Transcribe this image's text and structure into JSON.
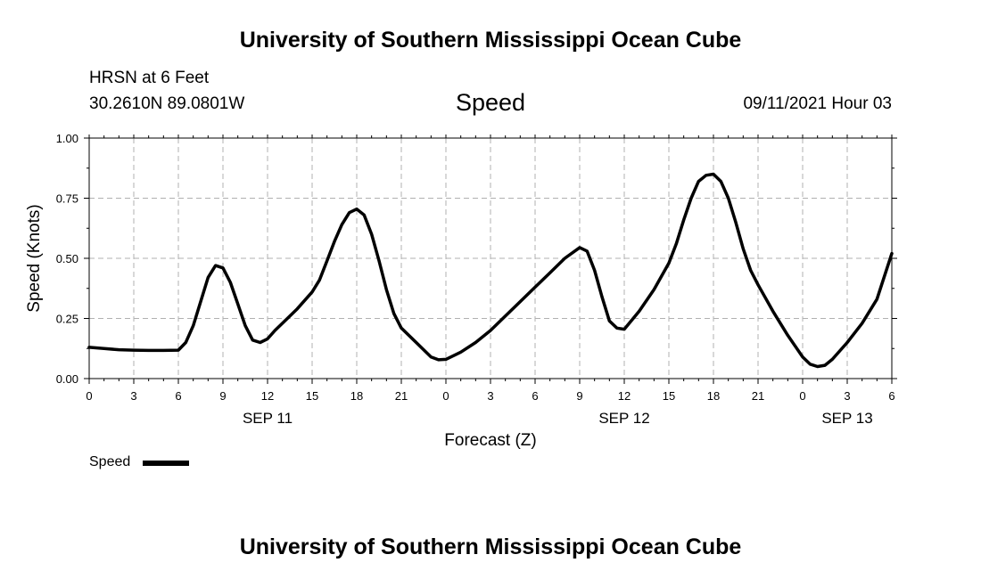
{
  "header": {
    "title": "University of Southern Mississippi Ocean Cube",
    "station": "HRSN at 6 Feet",
    "coordinates": "30.2610N  89.0801W",
    "variable": "Speed",
    "datetime": "09/11/2021 Hour 03"
  },
  "footer": {
    "title": "University of Southern Mississippi Ocean Cube"
  },
  "legend": {
    "label": "Speed"
  },
  "chart_data": {
    "type": "line",
    "title": "Speed",
    "xlabel": "Forecast (Z)",
    "ylabel": "Speed (Knots)",
    "xlim": [
      0,
      54
    ],
    "ylim": [
      0,
      1.0
    ],
    "x_ticks": [
      0,
      3,
      6,
      9,
      12,
      15,
      18,
      21,
      24,
      27,
      30,
      33,
      36,
      39,
      42,
      45,
      48,
      51,
      54
    ],
    "x_tick_labels": [
      "0",
      "3",
      "6",
      "9",
      "12",
      "15",
      "18",
      "21",
      "0",
      "3",
      "6",
      "9",
      "12",
      "15",
      "18",
      "21",
      "0",
      "3",
      "6"
    ],
    "y_ticks": [
      0,
      0.25,
      0.5,
      0.75,
      1.0
    ],
    "y_tick_labels": [
      "0.00",
      "0.25",
      "0.50",
      "0.75",
      "1.00"
    ],
    "day_labels": [
      {
        "x": 12,
        "label": "SEP 11"
      },
      {
        "x": 36,
        "label": "SEP 12"
      },
      {
        "x": 51,
        "label": "SEP 13"
      }
    ],
    "grid": true,
    "series": [
      {
        "name": "Speed",
        "color": "#000000",
        "x": [
          0,
          1,
          2,
          3,
          4,
          5,
          6,
          6.5,
          7,
          7.5,
          8,
          8.5,
          9,
          9.5,
          10,
          10.5,
          11,
          11.5,
          12,
          12.5,
          13,
          14,
          15,
          15.5,
          16,
          16.5,
          17,
          17.5,
          18,
          18.5,
          19,
          19.5,
          20,
          20.5,
          21,
          22,
          23,
          23.5,
          24,
          25,
          26,
          27,
          28,
          29,
          30,
          31,
          32,
          33,
          33.5,
          34,
          34.5,
          35,
          35.5,
          36,
          37,
          38,
          39,
          39.5,
          40,
          40.5,
          41,
          41.5,
          42,
          42.5,
          43,
          43.5,
          44,
          44.5,
          45,
          46,
          47,
          48,
          48.5,
          49,
          49.5,
          50,
          51,
          52,
          53,
          54
        ],
        "values": [
          0.13,
          0.125,
          0.12,
          0.118,
          0.117,
          0.117,
          0.118,
          0.15,
          0.22,
          0.32,
          0.42,
          0.47,
          0.46,
          0.4,
          0.31,
          0.22,
          0.16,
          0.15,
          0.165,
          0.2,
          0.23,
          0.29,
          0.36,
          0.41,
          0.49,
          0.57,
          0.64,
          0.69,
          0.705,
          0.68,
          0.6,
          0.49,
          0.37,
          0.27,
          0.21,
          0.15,
          0.09,
          0.078,
          0.08,
          0.11,
          0.15,
          0.2,
          0.26,
          0.32,
          0.38,
          0.44,
          0.5,
          0.545,
          0.53,
          0.45,
          0.34,
          0.24,
          0.21,
          0.205,
          0.28,
          0.37,
          0.48,
          0.56,
          0.66,
          0.75,
          0.82,
          0.845,
          0.85,
          0.82,
          0.75,
          0.65,
          0.54,
          0.45,
          0.39,
          0.28,
          0.18,
          0.09,
          0.06,
          0.05,
          0.055,
          0.08,
          0.15,
          0.23,
          0.33,
          0.52
        ]
      }
    ]
  }
}
